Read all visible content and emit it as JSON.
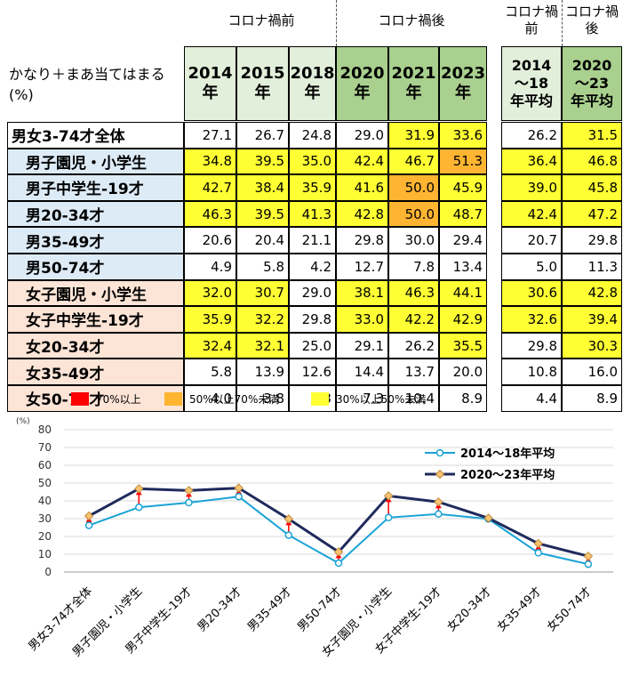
{
  "table": {
    "corner_label": "かなり＋まあ当てはまる\n(%)",
    "group_labels": {
      "before": "コロナ禍前",
      "after": "コロナ禍後"
    },
    "avg_headers": {
      "before_top": "コロナ禍\n前",
      "after_top": "コロナ禍\n後"
    },
    "year_headers": [
      "2014\n年",
      "2015\n年",
      "2018\n年",
      "2020\n年",
      "2021\n年",
      "2023\n年"
    ],
    "avg_year_headers": [
      "2014\n～18\n年平均",
      "2020\n～23\n年平均"
    ],
    "rows": [
      {
        "label": "男女3-74才全体",
        "values": [
          "27.1",
          "26.7",
          "24.8",
          "29.0",
          "31.9",
          "33.6"
        ],
        "avg": [
          "26.2",
          "31.5"
        ],
        "fill": [
          "",
          "",
          "",
          "",
          "y",
          "y"
        ],
        "avgfill": [
          "",
          "y"
        ],
        "group": "all"
      },
      {
        "label": "男子園児・小学生",
        "values": [
          "34.8",
          "39.5",
          "35.0",
          "42.4",
          "46.7",
          "51.3"
        ],
        "avg": [
          "36.4",
          "46.8"
        ],
        "fill": [
          "y",
          "y",
          "y",
          "y",
          "y",
          "o"
        ],
        "avgfill": [
          "y",
          "y"
        ],
        "group": "m"
      },
      {
        "label": "男子中学生-19才",
        "values": [
          "42.7",
          "38.4",
          "35.9",
          "41.6",
          "50.0",
          "45.9"
        ],
        "avg": [
          "39.0",
          "45.8"
        ],
        "fill": [
          "y",
          "y",
          "y",
          "y",
          "o",
          "y"
        ],
        "avgfill": [
          "y",
          "y"
        ],
        "group": "m"
      },
      {
        "label": "男20-34才",
        "values": [
          "46.3",
          "39.5",
          "41.3",
          "42.8",
          "50.0",
          "48.7"
        ],
        "avg": [
          "42.4",
          "47.2"
        ],
        "fill": [
          "y",
          "y",
          "y",
          "y",
          "o",
          "y"
        ],
        "avgfill": [
          "y",
          "y"
        ],
        "group": "m"
      },
      {
        "label": "男35-49才",
        "values": [
          "20.6",
          "20.4",
          "21.1",
          "29.8",
          "30.0",
          "29.4"
        ],
        "avg": [
          "20.7",
          "29.8"
        ],
        "fill": [
          "",
          "",
          "",
          "",
          "",
          ""
        ],
        "avgfill": [
          "",
          ""
        ],
        "group": "m"
      },
      {
        "label": "男50-74才",
        "values": [
          "4.9",
          "5.8",
          "4.2",
          "12.7",
          "7.8",
          "13.4"
        ],
        "avg": [
          "5.0",
          "11.3"
        ],
        "fill": [
          "",
          "",
          "",
          "",
          "",
          ""
        ],
        "avgfill": [
          "",
          ""
        ],
        "group": "m"
      },
      {
        "label": "女子園児・小学生",
        "values": [
          "32.0",
          "30.7",
          "29.0",
          "38.1",
          "46.3",
          "44.1"
        ],
        "avg": [
          "30.6",
          "42.8"
        ],
        "fill": [
          "y",
          "y",
          "",
          "y",
          "y",
          "y"
        ],
        "avgfill": [
          "y",
          "y"
        ],
        "group": "f"
      },
      {
        "label": "女子中学生-19才",
        "values": [
          "35.9",
          "32.2",
          "29.8",
          "33.0",
          "42.2",
          "42.9"
        ],
        "avg": [
          "32.6",
          "39.4"
        ],
        "fill": [
          "y",
          "y",
          "",
          "y",
          "y",
          "y"
        ],
        "avgfill": [
          "y",
          "y"
        ],
        "group": "f"
      },
      {
        "label": "女20-34才",
        "values": [
          "32.4",
          "32.1",
          "25.0",
          "29.1",
          "26.2",
          "35.5"
        ],
        "avg": [
          "29.8",
          "30.3"
        ],
        "fill": [
          "y",
          "y",
          "",
          "",
          "",
          "y"
        ],
        "avgfill": [
          "",
          "y"
        ],
        "group": "f"
      },
      {
        "label": "女35-49才",
        "values": [
          "5.8",
          "13.9",
          "12.6",
          "14.4",
          "13.7",
          "20.0"
        ],
        "avg": [
          "10.8",
          "16.0"
        ],
        "fill": [
          "",
          "",
          "",
          "",
          "",
          ""
        ],
        "avgfill": [
          "",
          ""
        ],
        "group": "f"
      },
      {
        "label": "女50-74才",
        "values": [
          "4.0",
          "3.8",
          "5.3",
          "7.3",
          "10.4",
          "8.9"
        ],
        "avg": [
          "4.4",
          "8.9"
        ],
        "fill": [
          "",
          "",
          "",
          "",
          "",
          ""
        ],
        "avgfill": [
          "",
          ""
        ],
        "group": "f"
      }
    ]
  },
  "legend": [
    {
      "label": "70%以上",
      "color": "#ff0000"
    },
    {
      "label": "50%以上70%未満",
      "color": "#ffb432"
    },
    {
      "label": "30%以上50%未満",
      "color": "#ffff33"
    }
  ],
  "colors": {
    "yellow": "#ffff33",
    "orange": "#ffb432",
    "red": "#ff0000",
    "header_before": "#e2efda",
    "header_after": "#a9d08e",
    "row_male": "#ddebf7",
    "row_female": "#fce4d6",
    "series_before": "#1aa3d6",
    "series_after": "#1f2a5c",
    "marker_after_fill": "#f8c471",
    "arrow": "#ff0000"
  },
  "chart_data": {
    "type": "line",
    "ylabel": "(%)",
    "ylim": [
      0,
      80
    ],
    "yticks": [
      "0",
      "10",
      "20",
      "30",
      "40",
      "50",
      "60",
      "70",
      "80"
    ],
    "categories": [
      "男女3-74才全体",
      "男子園児・小学生",
      "男子中学生-19才",
      "男20-34才",
      "男35-49才",
      "男50-74才",
      "女子園児・小学生",
      "女子中学生-19才",
      "女20-34才",
      "女35-49才",
      "女50-74才"
    ],
    "series": [
      {
        "name": "2014～18年平均",
        "values": [
          26.2,
          36.4,
          39.0,
          42.4,
          20.7,
          5.0,
          30.6,
          32.6,
          29.8,
          10.8,
          4.4
        ]
      },
      {
        "name": "2020～23年平均",
        "values": [
          31.5,
          46.8,
          45.8,
          47.2,
          29.8,
          11.3,
          42.8,
          39.4,
          30.3,
          16.0,
          8.9
        ]
      }
    ],
    "grid": true,
    "legend_position": "top-right"
  }
}
